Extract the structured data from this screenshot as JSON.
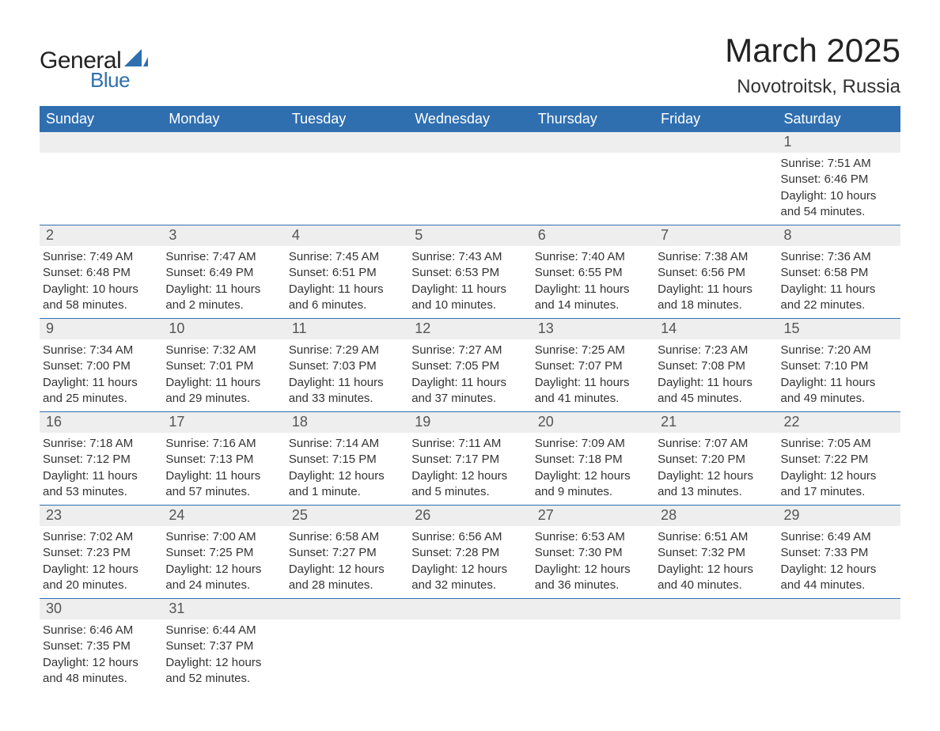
{
  "logo": {
    "text_general": "General",
    "text_blue": "Blue",
    "shape_color": "#2f6fb0"
  },
  "header": {
    "month_title": "March 2025",
    "location": "Novotroitsk, Russia"
  },
  "colors": {
    "header_bg": "#2f6fb0",
    "daynum_bg": "#eeeeee",
    "row_border": "#2f6fb0",
    "text": "#333333",
    "background": "#ffffff"
  },
  "typography": {
    "month_title_fontsize": 42,
    "location_fontsize": 24,
    "weekday_fontsize": 18,
    "daynum_fontsize": 18,
    "body_fontsize": 15,
    "logo_general_fontsize": 30,
    "logo_blue_fontsize": 26
  },
  "weekdays": [
    "Sunday",
    "Monday",
    "Tuesday",
    "Wednesday",
    "Thursday",
    "Friday",
    "Saturday"
  ],
  "weeks": [
    [
      {
        "day": "",
        "sunrise": "",
        "sunset": "",
        "daylight": ""
      },
      {
        "day": "",
        "sunrise": "",
        "sunset": "",
        "daylight": ""
      },
      {
        "day": "",
        "sunrise": "",
        "sunset": "",
        "daylight": ""
      },
      {
        "day": "",
        "sunrise": "",
        "sunset": "",
        "daylight": ""
      },
      {
        "day": "",
        "sunrise": "",
        "sunset": "",
        "daylight": ""
      },
      {
        "day": "",
        "sunrise": "",
        "sunset": "",
        "daylight": ""
      },
      {
        "day": "1",
        "sunrise": "Sunrise: 7:51 AM",
        "sunset": "Sunset: 6:46 PM",
        "daylight": "Daylight: 10 hours and 54 minutes."
      }
    ],
    [
      {
        "day": "2",
        "sunrise": "Sunrise: 7:49 AM",
        "sunset": "Sunset: 6:48 PM",
        "daylight": "Daylight: 10 hours and 58 minutes."
      },
      {
        "day": "3",
        "sunrise": "Sunrise: 7:47 AM",
        "sunset": "Sunset: 6:49 PM",
        "daylight": "Daylight: 11 hours and 2 minutes."
      },
      {
        "day": "4",
        "sunrise": "Sunrise: 7:45 AM",
        "sunset": "Sunset: 6:51 PM",
        "daylight": "Daylight: 11 hours and 6 minutes."
      },
      {
        "day": "5",
        "sunrise": "Sunrise: 7:43 AM",
        "sunset": "Sunset: 6:53 PM",
        "daylight": "Daylight: 11 hours and 10 minutes."
      },
      {
        "day": "6",
        "sunrise": "Sunrise: 7:40 AM",
        "sunset": "Sunset: 6:55 PM",
        "daylight": "Daylight: 11 hours and 14 minutes."
      },
      {
        "day": "7",
        "sunrise": "Sunrise: 7:38 AM",
        "sunset": "Sunset: 6:56 PM",
        "daylight": "Daylight: 11 hours and 18 minutes."
      },
      {
        "day": "8",
        "sunrise": "Sunrise: 7:36 AM",
        "sunset": "Sunset: 6:58 PM",
        "daylight": "Daylight: 11 hours and 22 minutes."
      }
    ],
    [
      {
        "day": "9",
        "sunrise": "Sunrise: 7:34 AM",
        "sunset": "Sunset: 7:00 PM",
        "daylight": "Daylight: 11 hours and 25 minutes."
      },
      {
        "day": "10",
        "sunrise": "Sunrise: 7:32 AM",
        "sunset": "Sunset: 7:01 PM",
        "daylight": "Daylight: 11 hours and 29 minutes."
      },
      {
        "day": "11",
        "sunrise": "Sunrise: 7:29 AM",
        "sunset": "Sunset: 7:03 PM",
        "daylight": "Daylight: 11 hours and 33 minutes."
      },
      {
        "day": "12",
        "sunrise": "Sunrise: 7:27 AM",
        "sunset": "Sunset: 7:05 PM",
        "daylight": "Daylight: 11 hours and 37 minutes."
      },
      {
        "day": "13",
        "sunrise": "Sunrise: 7:25 AM",
        "sunset": "Sunset: 7:07 PM",
        "daylight": "Daylight: 11 hours and 41 minutes."
      },
      {
        "day": "14",
        "sunrise": "Sunrise: 7:23 AM",
        "sunset": "Sunset: 7:08 PM",
        "daylight": "Daylight: 11 hours and 45 minutes."
      },
      {
        "day": "15",
        "sunrise": "Sunrise: 7:20 AM",
        "sunset": "Sunset: 7:10 PM",
        "daylight": "Daylight: 11 hours and 49 minutes."
      }
    ],
    [
      {
        "day": "16",
        "sunrise": "Sunrise: 7:18 AM",
        "sunset": "Sunset: 7:12 PM",
        "daylight": "Daylight: 11 hours and 53 minutes."
      },
      {
        "day": "17",
        "sunrise": "Sunrise: 7:16 AM",
        "sunset": "Sunset: 7:13 PM",
        "daylight": "Daylight: 11 hours and 57 minutes."
      },
      {
        "day": "18",
        "sunrise": "Sunrise: 7:14 AM",
        "sunset": "Sunset: 7:15 PM",
        "daylight": "Daylight: 12 hours and 1 minute."
      },
      {
        "day": "19",
        "sunrise": "Sunrise: 7:11 AM",
        "sunset": "Sunset: 7:17 PM",
        "daylight": "Daylight: 12 hours and 5 minutes."
      },
      {
        "day": "20",
        "sunrise": "Sunrise: 7:09 AM",
        "sunset": "Sunset: 7:18 PM",
        "daylight": "Daylight: 12 hours and 9 minutes."
      },
      {
        "day": "21",
        "sunrise": "Sunrise: 7:07 AM",
        "sunset": "Sunset: 7:20 PM",
        "daylight": "Daylight: 12 hours and 13 minutes."
      },
      {
        "day": "22",
        "sunrise": "Sunrise: 7:05 AM",
        "sunset": "Sunset: 7:22 PM",
        "daylight": "Daylight: 12 hours and 17 minutes."
      }
    ],
    [
      {
        "day": "23",
        "sunrise": "Sunrise: 7:02 AM",
        "sunset": "Sunset: 7:23 PM",
        "daylight": "Daylight: 12 hours and 20 minutes."
      },
      {
        "day": "24",
        "sunrise": "Sunrise: 7:00 AM",
        "sunset": "Sunset: 7:25 PM",
        "daylight": "Daylight: 12 hours and 24 minutes."
      },
      {
        "day": "25",
        "sunrise": "Sunrise: 6:58 AM",
        "sunset": "Sunset: 7:27 PM",
        "daylight": "Daylight: 12 hours and 28 minutes."
      },
      {
        "day": "26",
        "sunrise": "Sunrise: 6:56 AM",
        "sunset": "Sunset: 7:28 PM",
        "daylight": "Daylight: 12 hours and 32 minutes."
      },
      {
        "day": "27",
        "sunrise": "Sunrise: 6:53 AM",
        "sunset": "Sunset: 7:30 PM",
        "daylight": "Daylight: 12 hours and 36 minutes."
      },
      {
        "day": "28",
        "sunrise": "Sunrise: 6:51 AM",
        "sunset": "Sunset: 7:32 PM",
        "daylight": "Daylight: 12 hours and 40 minutes."
      },
      {
        "day": "29",
        "sunrise": "Sunrise: 6:49 AM",
        "sunset": "Sunset: 7:33 PM",
        "daylight": "Daylight: 12 hours and 44 minutes."
      }
    ],
    [
      {
        "day": "30",
        "sunrise": "Sunrise: 6:46 AM",
        "sunset": "Sunset: 7:35 PM",
        "daylight": "Daylight: 12 hours and 48 minutes."
      },
      {
        "day": "31",
        "sunrise": "Sunrise: 6:44 AM",
        "sunset": "Sunset: 7:37 PM",
        "daylight": "Daylight: 12 hours and 52 minutes."
      },
      {
        "day": "",
        "sunrise": "",
        "sunset": "",
        "daylight": ""
      },
      {
        "day": "",
        "sunrise": "",
        "sunset": "",
        "daylight": ""
      },
      {
        "day": "",
        "sunrise": "",
        "sunset": "",
        "daylight": ""
      },
      {
        "day": "",
        "sunrise": "",
        "sunset": "",
        "daylight": ""
      },
      {
        "day": "",
        "sunrise": "",
        "sunset": "",
        "daylight": ""
      }
    ]
  ]
}
